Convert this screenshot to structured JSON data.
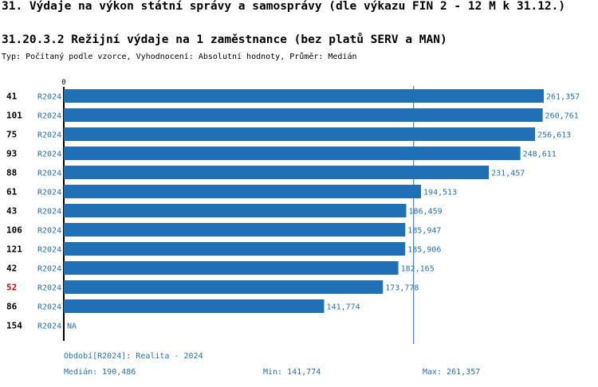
{
  "header": {
    "title": "31. Výdaje na výkon státní správy a samosprávy (dle výkazu FIN 2 - 12 M k 31.12.)",
    "subtitle": "31.20.3.2 Režijní výdaje na 1 zaměstnance (bez platů SERV a MAN)",
    "type_line": "Typ: Počítaný podle vzorce, Vyhodnocení: Absolutní hodnoty, Průměr: Medián"
  },
  "colors": {
    "bar": "#1f70b5",
    "text_blue": "#1f70b5",
    "highlight": "#e00000",
    "axis": "#000000"
  },
  "chart_data": {
    "type": "bar",
    "orientation": "horizontal",
    "x_origin_label": "0",
    "xlim": [
      0,
      261357
    ],
    "median_line": 190486,
    "rows": [
      {
        "id": "41",
        "period": "R2024",
        "value": 261357,
        "label": "261,357",
        "highlight": false
      },
      {
        "id": "101",
        "period": "R2024",
        "value": 260761,
        "label": "260,761",
        "highlight": false
      },
      {
        "id": "75",
        "period": "R2024",
        "value": 256613,
        "label": "256,613",
        "highlight": false
      },
      {
        "id": "93",
        "period": "R2024",
        "value": 248611,
        "label": "248,611",
        "highlight": false
      },
      {
        "id": "88",
        "period": "R2024",
        "value": 231457,
        "label": "231,457",
        "highlight": false
      },
      {
        "id": "61",
        "period": "R2024",
        "value": 194513,
        "label": "194,513",
        "highlight": false
      },
      {
        "id": "43",
        "period": "R2024",
        "value": 186459,
        "label": "186,459",
        "highlight": false
      },
      {
        "id": "106",
        "period": "R2024",
        "value": 185947,
        "label": "185,947",
        "highlight": false
      },
      {
        "id": "121",
        "period": "R2024",
        "value": 185906,
        "label": "185,906",
        "highlight": false
      },
      {
        "id": "42",
        "period": "R2024",
        "value": 182165,
        "label": "182,165",
        "highlight": false
      },
      {
        "id": "52",
        "period": "R2024",
        "value": 173778,
        "label": "173,778",
        "highlight": true
      },
      {
        "id": "86",
        "period": "R2024",
        "value": 141774,
        "label": "141,774",
        "highlight": false
      },
      {
        "id": "154",
        "period": "R2024",
        "value": null,
        "label": "NA",
        "highlight": false
      }
    ]
  },
  "footer": {
    "period_note": "Období[R2024]: Realita - 2024",
    "median": "Medián: 190,486",
    "min": "Min: 141,774",
    "max": "Max: 261,357"
  }
}
